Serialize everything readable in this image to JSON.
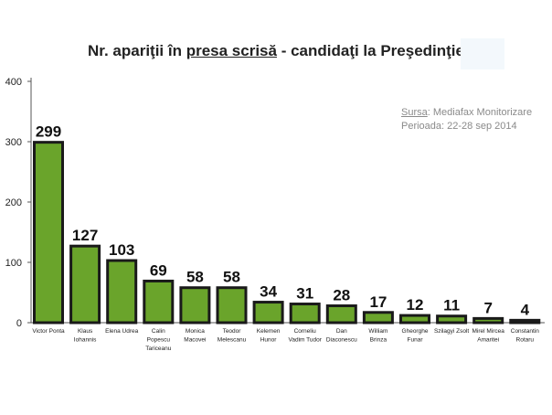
{
  "chart_data": {
    "type": "bar",
    "title_prefix": "Nr. apariţii în ",
    "title_underlined": "presa scrisă",
    "title_suffix": "  - candidaţi la Preşedinţie",
    "categories": [
      [
        "Victor Ponta"
      ],
      [
        "Klaus",
        "Iohannis"
      ],
      [
        "Elena Udrea"
      ],
      [
        "Calin",
        "Popescu",
        "Tariceanu"
      ],
      [
        "Monica",
        "Macovei"
      ],
      [
        "Teodor",
        "Melescanu"
      ],
      [
        "Kelemen",
        "Hunor"
      ],
      [
        "Corneliu",
        "Vadim Tudor"
      ],
      [
        "Dan",
        "Diaconescu"
      ],
      [
        "William",
        "Brinza"
      ],
      [
        "Gheorghe",
        "Funar"
      ],
      [
        "Szilagyi Zsolt"
      ],
      [
        "Mirel Mircea",
        "Amaritei"
      ],
      [
        "Constantin",
        "Rotaru"
      ]
    ],
    "values": [
      299,
      127,
      103,
      69,
      58,
      58,
      34,
      31,
      28,
      17,
      12,
      11,
      7,
      4
    ],
    "data_labels": [
      "299",
      "127",
      "103",
      "69",
      "58",
      "58",
      "34",
      "31",
      "28",
      "17",
      "12",
      "11",
      "7",
      "4"
    ],
    "ylim": [
      0,
      400
    ],
    "yticks": [
      "0",
      "100",
      "200",
      "300",
      "400"
    ],
    "grid": false,
    "bar_color": "#6aa42b",
    "bar_outline_color": "#1a1a1a",
    "source_label": "Sursa",
    "source_text": ": Mediafax Monitorizare",
    "period": "Perioada: 22-28 sep 2014"
  }
}
